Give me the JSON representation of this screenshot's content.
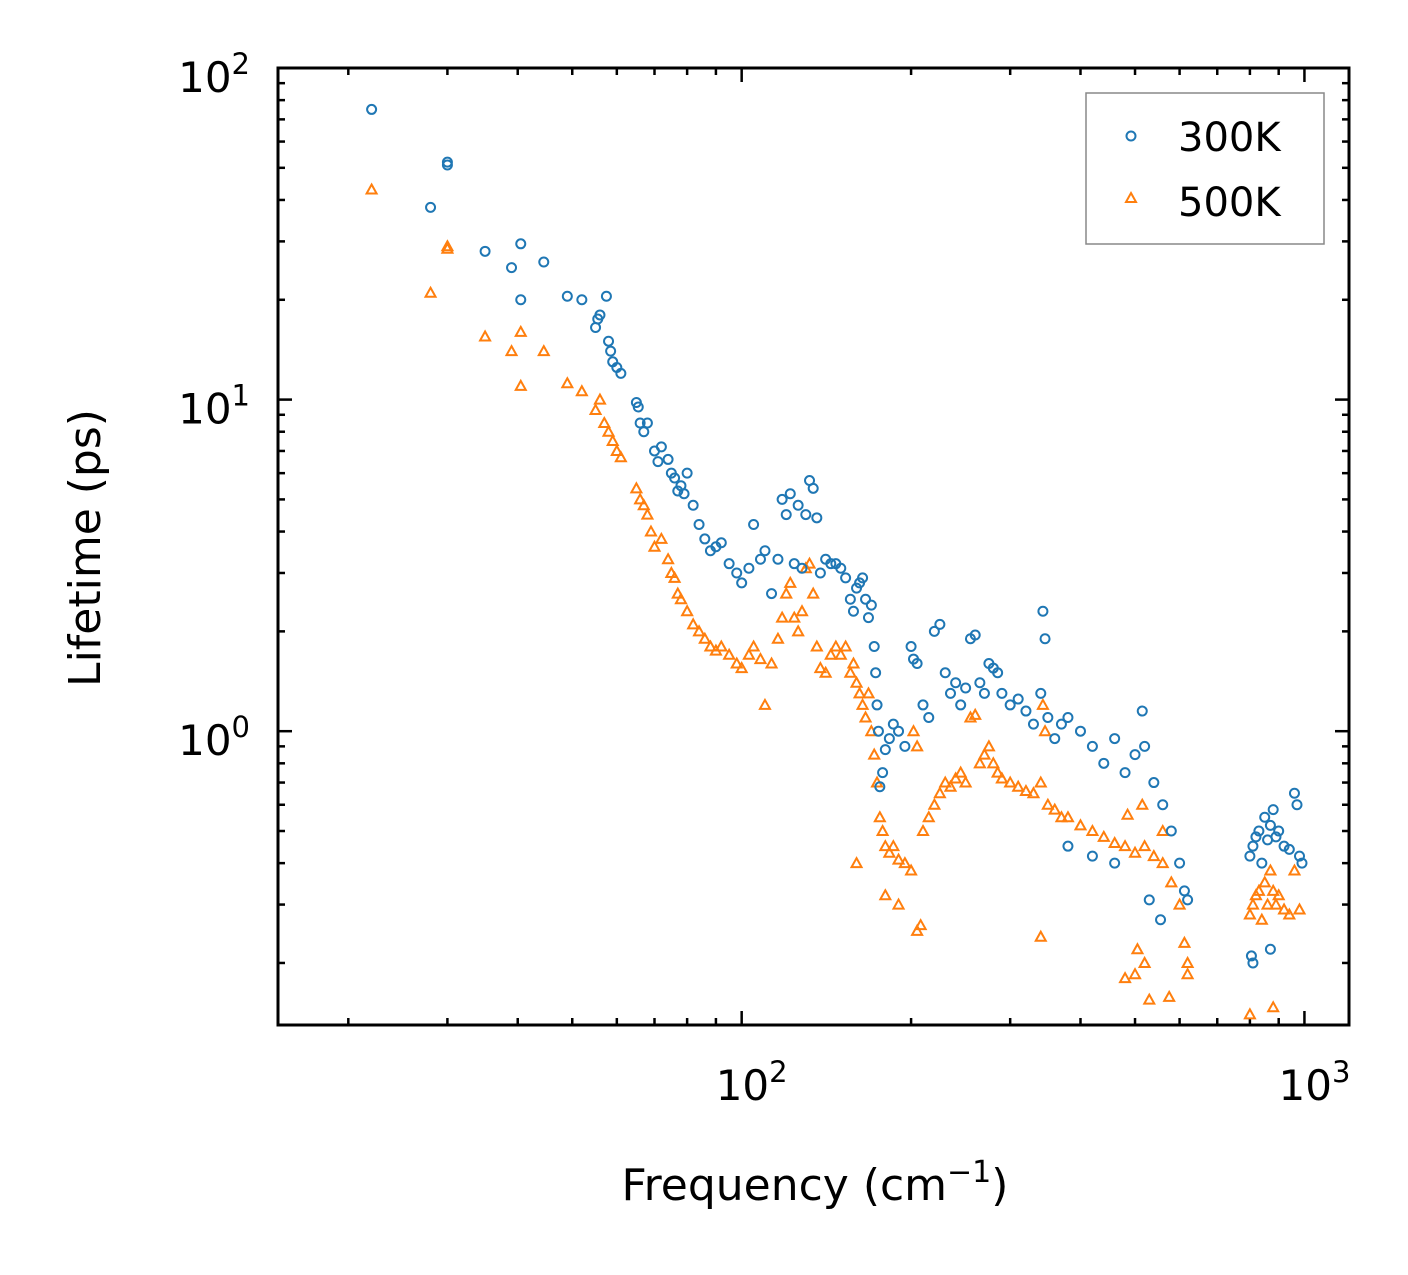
{
  "chart_data": {
    "type": "scatter",
    "title": "",
    "xlabel": "Frequency (cm",
    "xlabel_sup": "−1",
    "xlabel_end": ")",
    "ylabel": "Lifetime (ps)",
    "xscale": "log",
    "yscale": "log",
    "xlim": [
      15,
      1200
    ],
    "ylim": [
      0.13,
      100
    ],
    "x_ticks": [
      {
        "value": 100,
        "base": "10",
        "exp": "2"
      },
      {
        "value": 1000,
        "base": "10",
        "exp": "3"
      }
    ],
    "y_ticks": [
      {
        "value": 1,
        "base": "10",
        "exp": "0"
      },
      {
        "value": 10,
        "base": "10",
        "exp": "1"
      },
      {
        "value": 100,
        "base": "10",
        "exp": "2"
      }
    ],
    "legend": {
      "position": "top-right",
      "entries": [
        "300K",
        "500K"
      ]
    },
    "series": [
      {
        "name": "300K",
        "color": "#1f77b4",
        "marker": "circle",
        "points": [
          [
            22,
            75
          ],
          [
            28,
            38
          ],
          [
            30,
            52
          ],
          [
            30,
            51
          ],
          [
            35,
            28
          ],
          [
            39,
            25
          ],
          [
            40.5,
            29.5
          ],
          [
            40.5,
            20
          ],
          [
            44.5,
            26
          ],
          [
            49,
            20.5
          ],
          [
            52,
            20
          ],
          [
            55,
            16.5
          ],
          [
            55.5,
            17.5
          ],
          [
            56,
            18
          ],
          [
            57.5,
            20.5
          ],
          [
            58,
            15
          ],
          [
            58.5,
            14
          ],
          [
            59,
            13
          ],
          [
            60,
            12.5
          ],
          [
            61,
            12
          ],
          [
            65,
            9.8
          ],
          [
            65.5,
            9.5
          ],
          [
            66,
            8.5
          ],
          [
            67,
            8
          ],
          [
            68,
            8.5
          ],
          [
            70,
            7
          ],
          [
            71,
            6.5
          ],
          [
            72,
            7.2
          ],
          [
            74,
            6.6
          ],
          [
            75,
            6
          ],
          [
            76,
            5.8
          ],
          [
            77,
            5.3
          ],
          [
            78,
            5.5
          ],
          [
            79,
            5.2
          ],
          [
            80,
            6
          ],
          [
            82,
            4.8
          ],
          [
            84,
            4.2
          ],
          [
            86,
            3.8
          ],
          [
            88,
            3.5
          ],
          [
            90,
            3.6
          ],
          [
            92,
            3.7
          ],
          [
            95,
            3.2
          ],
          [
            98,
            3
          ],
          [
            100,
            2.8
          ],
          [
            103,
            3.1
          ],
          [
            105,
            4.2
          ],
          [
            108,
            3.3
          ],
          [
            110,
            3.5
          ],
          [
            113,
            2.6
          ],
          [
            116,
            3.3
          ],
          [
            118,
            5
          ],
          [
            120,
            4.5
          ],
          [
            122,
            5.2
          ],
          [
            124,
            3.2
          ],
          [
            126,
            4.8
          ],
          [
            128,
            3.1
          ],
          [
            130,
            4.5
          ],
          [
            132,
            5.7
          ],
          [
            134,
            5.4
          ],
          [
            136,
            4.4
          ],
          [
            138,
            3
          ],
          [
            141,
            3.3
          ],
          [
            144,
            3.2
          ],
          [
            147,
            3.2
          ],
          [
            150,
            3.1
          ],
          [
            153,
            2.9
          ],
          [
            156,
            2.5
          ],
          [
            158,
            2.3
          ],
          [
            160,
            2.7
          ],
          [
            162,
            2.8
          ],
          [
            164,
            2.9
          ],
          [
            166,
            2.5
          ],
          [
            168,
            2.2
          ],
          [
            170,
            2.4
          ],
          [
            172,
            1.8
          ],
          [
            173,
            1.5
          ],
          [
            174,
            1.2
          ],
          [
            175,
            1
          ],
          [
            176,
            0.68
          ],
          [
            178,
            0.75
          ],
          [
            180,
            0.88
          ],
          [
            183,
            0.95
          ],
          [
            186,
            1.05
          ],
          [
            190,
            1
          ],
          [
            195,
            0.9
          ],
          [
            200,
            1.8
          ],
          [
            202,
            1.65
          ],
          [
            205,
            1.6
          ],
          [
            210,
            1.2
          ],
          [
            215,
            1.1
          ],
          [
            220,
            2
          ],
          [
            225,
            2.1
          ],
          [
            230,
            1.5
          ],
          [
            235,
            1.3
          ],
          [
            240,
            1.4
          ],
          [
            245,
            1.2
          ],
          [
            250,
            1.35
          ],
          [
            255,
            1.9
          ],
          [
            260,
            1.95
          ],
          [
            265,
            1.4
          ],
          [
            270,
            1.3
          ],
          [
            275,
            1.6
          ],
          [
            280,
            1.55
          ],
          [
            285,
            1.5
          ],
          [
            290,
            1.3
          ],
          [
            300,
            1.2
          ],
          [
            310,
            1.25
          ],
          [
            320,
            1.15
          ],
          [
            330,
            1.05
          ],
          [
            340,
            1.3
          ],
          [
            343,
            2.3
          ],
          [
            346,
            1.9
          ],
          [
            350,
            1.1
          ],
          [
            360,
            0.95
          ],
          [
            370,
            1.05
          ],
          [
            380,
            1.1
          ],
          [
            400,
            1
          ],
          [
            420,
            0.9
          ],
          [
            440,
            0.8
          ],
          [
            460,
            0.95
          ],
          [
            480,
            0.75
          ],
          [
            500,
            0.85
          ],
          [
            515,
            1.15
          ],
          [
            520,
            0.9
          ],
          [
            540,
            0.7
          ],
          [
            560,
            0.6
          ],
          [
            580,
            0.5
          ],
          [
            600,
            0.4
          ],
          [
            612,
            0.33
          ],
          [
            620,
            0.31
          ],
          [
            800,
            0.42
          ],
          [
            810,
            0.45
          ],
          [
            820,
            0.48
          ],
          [
            830,
            0.5
          ],
          [
            840,
            0.4
          ],
          [
            850,
            0.55
          ],
          [
            860,
            0.47
          ],
          [
            870,
            0.52
          ],
          [
            880,
            0.58
          ],
          [
            890,
            0.48
          ],
          [
            900,
            0.5
          ],
          [
            920,
            0.45
          ],
          [
            940,
            0.44
          ],
          [
            960,
            0.65
          ],
          [
            970,
            0.6
          ],
          [
            980,
            0.42
          ],
          [
            990,
            0.4
          ],
          [
            805,
            0.21
          ],
          [
            810,
            0.2
          ],
          [
            870,
            0.22
          ],
          [
            555,
            0.27
          ],
          [
            530,
            0.31
          ],
          [
            460,
            0.4
          ],
          [
            420,
            0.42
          ],
          [
            380,
            0.45
          ]
        ]
      },
      {
        "name": "500K",
        "color": "#ff7f0e",
        "marker": "triangle",
        "points": [
          [
            22,
            43
          ],
          [
            28,
            21
          ],
          [
            30,
            29
          ],
          [
            30,
            28.5
          ],
          [
            35,
            15.5
          ],
          [
            39,
            14
          ],
          [
            40.5,
            16
          ],
          [
            40.5,
            11
          ],
          [
            44.5,
            14
          ],
          [
            49,
            11.2
          ],
          [
            52,
            10.6
          ],
          [
            55,
            9.3
          ],
          [
            56,
            10
          ],
          [
            57,
            8.5
          ],
          [
            58,
            8
          ],
          [
            59,
            7.5
          ],
          [
            60,
            7
          ],
          [
            61,
            6.7
          ],
          [
            65,
            5.4
          ],
          [
            66,
            5
          ],
          [
            67,
            4.8
          ],
          [
            68,
            4.5
          ],
          [
            69,
            4
          ],
          [
            70,
            3.6
          ],
          [
            72,
            3.8
          ],
          [
            74,
            3.3
          ],
          [
            75,
            3
          ],
          [
            76,
            2.9
          ],
          [
            77,
            2.6
          ],
          [
            78,
            2.5
          ],
          [
            80,
            2.3
          ],
          [
            82,
            2.1
          ],
          [
            84,
            2
          ],
          [
            86,
            1.9
          ],
          [
            88,
            1.8
          ],
          [
            90,
            1.75
          ],
          [
            92,
            1.8
          ],
          [
            95,
            1.7
          ],
          [
            98,
            1.6
          ],
          [
            100,
            1.55
          ],
          [
            103,
            1.7
          ],
          [
            105,
            1.8
          ],
          [
            108,
            1.65
          ],
          [
            110,
            1.2
          ],
          [
            113,
            1.6
          ],
          [
            116,
            1.9
          ],
          [
            118,
            2.2
          ],
          [
            120,
            2.6
          ],
          [
            122,
            2.8
          ],
          [
            124,
            2.2
          ],
          [
            126,
            2
          ],
          [
            128,
            2.3
          ],
          [
            130,
            3.1
          ],
          [
            132,
            3.2
          ],
          [
            134,
            2.6
          ],
          [
            136,
            1.8
          ],
          [
            138,
            1.55
          ],
          [
            141,
            1.5
          ],
          [
            144,
            1.7
          ],
          [
            147,
            1.8
          ],
          [
            150,
            1.7
          ],
          [
            153,
            1.8
          ],
          [
            156,
            1.5
          ],
          [
            158,
            1.6
          ],
          [
            160,
            1.4
          ],
          [
            162,
            1.3
          ],
          [
            164,
            1.2
          ],
          [
            166,
            1.1
          ],
          [
            168,
            1.3
          ],
          [
            170,
            1
          ],
          [
            172,
            0.85
          ],
          [
            174,
            0.7
          ],
          [
            176,
            0.55
          ],
          [
            178,
            0.5
          ],
          [
            180,
            0.45
          ],
          [
            183,
            0.43
          ],
          [
            186,
            0.45
          ],
          [
            190,
            0.41
          ],
          [
            195,
            0.4
          ],
          [
            200,
            0.38
          ],
          [
            202,
            1
          ],
          [
            205,
            0.9
          ],
          [
            210,
            0.5
          ],
          [
            215,
            0.55
          ],
          [
            220,
            0.6
          ],
          [
            225,
            0.65
          ],
          [
            230,
            0.7
          ],
          [
            235,
            0.68
          ],
          [
            240,
            0.72
          ],
          [
            245,
            0.75
          ],
          [
            250,
            0.7
          ],
          [
            255,
            1.1
          ],
          [
            260,
            1.12
          ],
          [
            265,
            0.8
          ],
          [
            270,
            0.85
          ],
          [
            275,
            0.9
          ],
          [
            280,
            0.8
          ],
          [
            285,
            0.75
          ],
          [
            290,
            0.72
          ],
          [
            300,
            0.7
          ],
          [
            310,
            0.68
          ],
          [
            320,
            0.66
          ],
          [
            330,
            0.65
          ],
          [
            340,
            0.7
          ],
          [
            343,
            1.2
          ],
          [
            346,
            1
          ],
          [
            350,
            0.6
          ],
          [
            360,
            0.58
          ],
          [
            370,
            0.55
          ],
          [
            380,
            0.55
          ],
          [
            400,
            0.52
          ],
          [
            420,
            0.5
          ],
          [
            440,
            0.48
          ],
          [
            460,
            0.46
          ],
          [
            480,
            0.45
          ],
          [
            500,
            0.43
          ],
          [
            515,
            0.6
          ],
          [
            520,
            0.45
          ],
          [
            540,
            0.42
          ],
          [
            560,
            0.4
          ],
          [
            580,
            0.35
          ],
          [
            600,
            0.3
          ],
          [
            612,
            0.23
          ],
          [
            620,
            0.2
          ],
          [
            620,
            0.185
          ],
          [
            800,
            0.28
          ],
          [
            810,
            0.3
          ],
          [
            820,
            0.32
          ],
          [
            830,
            0.33
          ],
          [
            840,
            0.27
          ],
          [
            850,
            0.35
          ],
          [
            860,
            0.3
          ],
          [
            870,
            0.38
          ],
          [
            880,
            0.33
          ],
          [
            890,
            0.3
          ],
          [
            900,
            0.32
          ],
          [
            920,
            0.29
          ],
          [
            940,
            0.28
          ],
          [
            960,
            0.38
          ],
          [
            980,
            0.29
          ],
          [
            800,
            0.14
          ],
          [
            880,
            0.147
          ],
          [
            160,
            0.4
          ],
          [
            180,
            0.32
          ],
          [
            190,
            0.3
          ],
          [
            205,
            0.25
          ],
          [
            208,
            0.26
          ],
          [
            340,
            0.24
          ],
          [
            480,
            0.18
          ],
          [
            500,
            0.185
          ],
          [
            530,
            0.155
          ],
          [
            575,
            0.158
          ],
          [
            520,
            0.2
          ],
          [
            505,
            0.22
          ],
          [
            560,
            0.5
          ],
          [
            485,
            0.56
          ]
        ]
      }
    ]
  }
}
